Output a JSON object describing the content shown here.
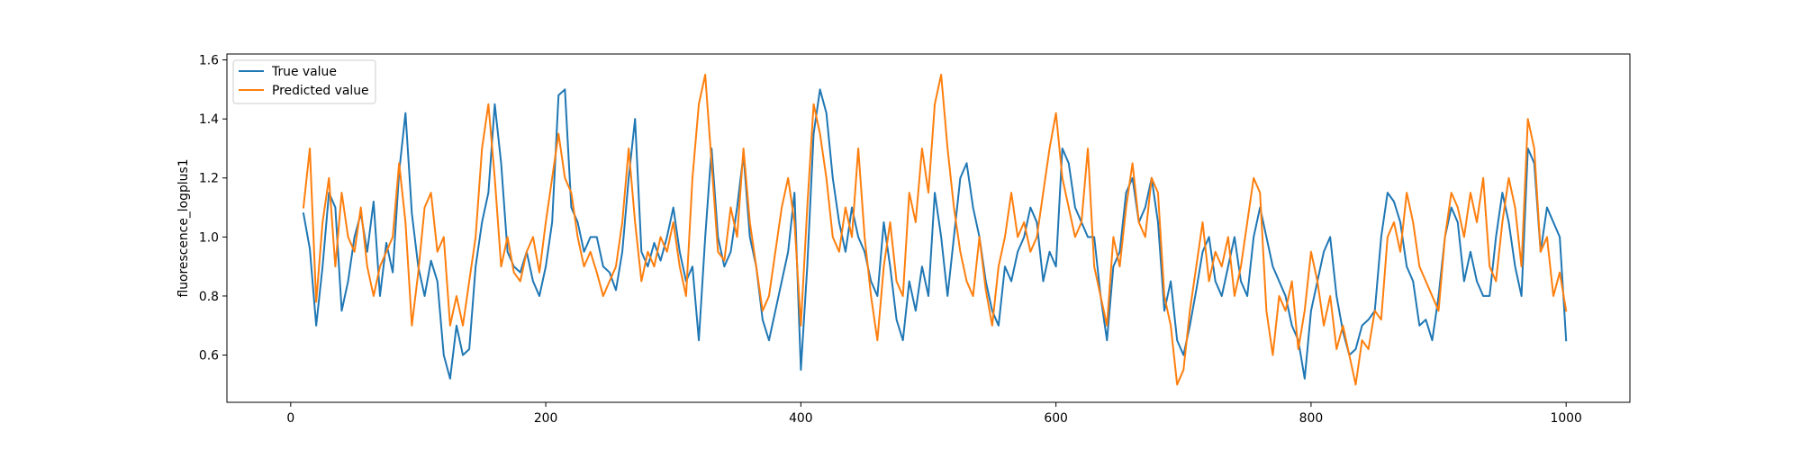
{
  "chart_data": {
    "type": "line",
    "title": "",
    "xlabel": "",
    "ylabel": "fluorescence_logplus1",
    "xlim": [
      -50,
      1050
    ],
    "ylim": [
      0.44,
      1.62
    ],
    "x_ticks": [
      0,
      200,
      400,
      600,
      800,
      1000
    ],
    "x_tick_labels": [
      "0",
      "200",
      "400",
      "600",
      "800",
      "1000"
    ],
    "y_ticks": [
      0.6,
      0.8,
      1.0,
      1.2,
      1.4,
      1.6
    ],
    "y_tick_labels": [
      "0.6",
      "0.8",
      "1.0",
      "1.2",
      "1.4",
      "1.6"
    ],
    "grid": false,
    "legend_position": "top-left",
    "series": [
      {
        "name": "True value",
        "color": "#1f77b4",
        "x": [
          10,
          15,
          20,
          25,
          30,
          35,
          40,
          45,
          50,
          55,
          60,
          65,
          70,
          75,
          80,
          85,
          90,
          95,
          100,
          105,
          110,
          115,
          120,
          125,
          130,
          135,
          140,
          145,
          150,
          155,
          160,
          165,
          170,
          175,
          180,
          185,
          190,
          195,
          200,
          205,
          210,
          215,
          220,
          225,
          230,
          235,
          240,
          245,
          250,
          255,
          260,
          265,
          270,
          275,
          280,
          285,
          290,
          295,
          300,
          305,
          310,
          315,
          320,
          325,
          330,
          335,
          340,
          345,
          350,
          355,
          360,
          365,
          370,
          375,
          380,
          385,
          390,
          395,
          400,
          405,
          410,
          415,
          420,
          425,
          430,
          435,
          440,
          445,
          450,
          455,
          460,
          465,
          470,
          475,
          480,
          485,
          490,
          495,
          500,
          505,
          510,
          515,
          520,
          525,
          530,
          535,
          540,
          545,
          550,
          555,
          560,
          565,
          570,
          575,
          580,
          585,
          590,
          595,
          600,
          605,
          610,
          615,
          620,
          625,
          630,
          635,
          640,
          645,
          650,
          655,
          660,
          665,
          670,
          675,
          680,
          685,
          690,
          695,
          700,
          705,
          710,
          715,
          720,
          725,
          730,
          735,
          740,
          745,
          750,
          755,
          760,
          765,
          770,
          775,
          780,
          785,
          790,
          795,
          800,
          805,
          810,
          815,
          820,
          825,
          830,
          835,
          840,
          845,
          850,
          855,
          860,
          865,
          870,
          875,
          880,
          885,
          890,
          895,
          900,
          905,
          910,
          915,
          920,
          925,
          930,
          935,
          940,
          945,
          950,
          955,
          960,
          965,
          970,
          975,
          980,
          985,
          990,
          995,
          1000
        ],
        "y": [
          1.08,
          0.96,
          0.7,
          0.9,
          1.15,
          1.1,
          0.75,
          0.85,
          1.0,
          1.08,
          0.95,
          1.12,
          0.8,
          0.98,
          0.88,
          1.22,
          1.42,
          1.08,
          0.9,
          0.8,
          0.92,
          0.85,
          0.6,
          0.52,
          0.7,
          0.6,
          0.62,
          0.9,
          1.05,
          1.15,
          1.45,
          1.25,
          0.95,
          0.9,
          0.88,
          0.95,
          0.85,
          0.8,
          0.9,
          1.05,
          1.48,
          1.5,
          1.1,
          1.05,
          0.95,
          1.0,
          1.0,
          0.9,
          0.88,
          0.82,
          0.95,
          1.2,
          1.4,
          0.95,
          0.9,
          0.98,
          0.92,
          1.0,
          1.1,
          0.95,
          0.85,
          0.9,
          0.65,
          1.0,
          1.3,
          1.0,
          0.9,
          0.95,
          1.1,
          1.28,
          1.0,
          0.9,
          0.72,
          0.65,
          0.75,
          0.85,
          0.95,
          1.15,
          0.55,
          0.9,
          1.35,
          1.5,
          1.42,
          1.2,
          1.05,
          0.95,
          1.1,
          1.0,
          0.95,
          0.85,
          0.8,
          1.05,
          0.9,
          0.72,
          0.65,
          0.85,
          0.75,
          0.9,
          0.8,
          1.15,
          1.0,
          0.8,
          1.0,
          1.2,
          1.25,
          1.1,
          1.0,
          0.85,
          0.75,
          0.7,
          0.9,
          0.85,
          0.95,
          1.0,
          1.1,
          1.05,
          0.85,
          0.95,
          0.9,
          1.3,
          1.25,
          1.1,
          1.05,
          1.0,
          1.0,
          0.8,
          0.65,
          0.9,
          0.95,
          1.15,
          1.2,
          1.05,
          1.1,
          1.2,
          1.05,
          0.75,
          0.85,
          0.65,
          0.6,
          0.7,
          0.82,
          0.95,
          1.0,
          0.85,
          0.8,
          0.9,
          1.0,
          0.85,
          0.8,
          1.0,
          1.1,
          1.0,
          0.9,
          0.85,
          0.8,
          0.7,
          0.65,
          0.52,
          0.75,
          0.85,
          0.95,
          1.0,
          0.8,
          0.68,
          0.6,
          0.62,
          0.7,
          0.72,
          0.75,
          1.0,
          1.15,
          1.12,
          1.05,
          0.9,
          0.85,
          0.7,
          0.72,
          0.65,
          0.8,
          1.0,
          1.1,
          1.05,
          0.85,
          0.95,
          0.85,
          0.8,
          0.8,
          1.0,
          1.15,
          1.05,
          0.9,
          0.8,
          1.3,
          1.25,
          0.95,
          1.1,
          1.05,
          1.0,
          0.65
        ]
      },
      {
        "name": "Predicted value",
        "color": "#ff7f0e",
        "x": [
          10,
          15,
          20,
          25,
          30,
          35,
          40,
          45,
          50,
          55,
          60,
          65,
          70,
          75,
          80,
          85,
          90,
          95,
          100,
          105,
          110,
          115,
          120,
          125,
          130,
          135,
          140,
          145,
          150,
          155,
          160,
          165,
          170,
          175,
          180,
          185,
          190,
          195,
          200,
          205,
          210,
          215,
          220,
          225,
          230,
          235,
          240,
          245,
          250,
          255,
          260,
          265,
          270,
          275,
          280,
          285,
          290,
          295,
          300,
          305,
          310,
          315,
          320,
          325,
          330,
          335,
          340,
          345,
          350,
          355,
          360,
          365,
          370,
          375,
          380,
          385,
          390,
          395,
          400,
          405,
          410,
          415,
          420,
          425,
          430,
          435,
          440,
          445,
          450,
          455,
          460,
          465,
          470,
          475,
          480,
          485,
          490,
          495,
          500,
          505,
          510,
          515,
          520,
          525,
          530,
          535,
          540,
          545,
          550,
          555,
          560,
          565,
          570,
          575,
          580,
          585,
          590,
          595,
          600,
          605,
          610,
          615,
          620,
          625,
          630,
          635,
          640,
          645,
          650,
          655,
          660,
          665,
          670,
          675,
          680,
          685,
          690,
          695,
          700,
          705,
          710,
          715,
          720,
          725,
          730,
          735,
          740,
          745,
          750,
          755,
          760,
          765,
          770,
          775,
          780,
          785,
          790,
          795,
          800,
          805,
          810,
          815,
          820,
          825,
          830,
          835,
          840,
          845,
          850,
          855,
          860,
          865,
          870,
          875,
          880,
          885,
          890,
          895,
          900,
          905,
          910,
          915,
          920,
          925,
          930,
          935,
          940,
          945,
          950,
          955,
          960,
          965,
          970,
          975,
          980,
          985,
          990,
          995,
          1000
        ],
        "y": [
          1.1,
          1.3,
          0.78,
          1.05,
          1.2,
          0.9,
          1.15,
          1.0,
          0.95,
          1.1,
          0.9,
          0.8,
          0.9,
          0.95,
          1.0,
          1.25,
          1.05,
          0.7,
          0.88,
          1.1,
          1.15,
          0.95,
          1.0,
          0.7,
          0.8,
          0.7,
          0.85,
          1.0,
          1.3,
          1.45,
          1.2,
          0.9,
          1.0,
          0.88,
          0.85,
          0.95,
          1.0,
          0.88,
          1.05,
          1.2,
          1.35,
          1.2,
          1.15,
          1.0,
          0.9,
          0.95,
          0.88,
          0.8,
          0.85,
          0.9,
          1.05,
          1.3,
          1.05,
          0.85,
          0.95,
          0.9,
          1.0,
          0.95,
          1.05,
          0.9,
          0.8,
          1.2,
          1.45,
          1.55,
          1.25,
          0.95,
          0.92,
          1.1,
          1.0,
          1.3,
          1.05,
          0.9,
          0.75,
          0.8,
          0.95,
          1.1,
          1.2,
          1.05,
          0.7,
          1.1,
          1.45,
          1.35,
          1.2,
          1.0,
          0.95,
          1.1,
          1.0,
          1.3,
          1.0,
          0.8,
          0.65,
          0.9,
          1.05,
          0.85,
          0.8,
          1.15,
          1.05,
          1.3,
          1.15,
          1.45,
          1.55,
          1.3,
          1.1,
          0.95,
          0.85,
          0.8,
          1.0,
          0.82,
          0.7,
          0.9,
          1.0,
          1.15,
          1.0,
          1.05,
          0.95,
          1.0,
          1.15,
          1.3,
          1.42,
          1.2,
          1.1,
          1.0,
          1.05,
          1.3,
          0.9,
          0.8,
          0.7,
          1.0,
          0.9,
          1.1,
          1.25,
          1.05,
          1.0,
          1.2,
          1.15,
          0.8,
          0.7,
          0.5,
          0.55,
          0.75,
          0.9,
          1.05,
          0.85,
          0.95,
          0.9,
          1.0,
          0.8,
          0.9,
          1.05,
          1.2,
          1.15,
          0.75,
          0.6,
          0.8,
          0.75,
          0.85,
          0.62,
          0.75,
          0.95,
          0.85,
          0.7,
          0.8,
          0.62,
          0.7,
          0.6,
          0.5,
          0.65,
          0.62,
          0.75,
          0.72,
          1.0,
          1.05,
          0.95,
          1.15,
          1.05,
          0.9,
          0.85,
          0.8,
          0.75,
          1.0,
          1.15,
          1.1,
          1.0,
          1.15,
          1.05,
          1.2,
          0.9,
          0.85,
          1.05,
          1.2,
          1.1,
          0.9,
          1.4,
          1.3,
          0.95,
          1.0,
          0.8,
          0.88,
          0.75
        ]
      }
    ]
  }
}
